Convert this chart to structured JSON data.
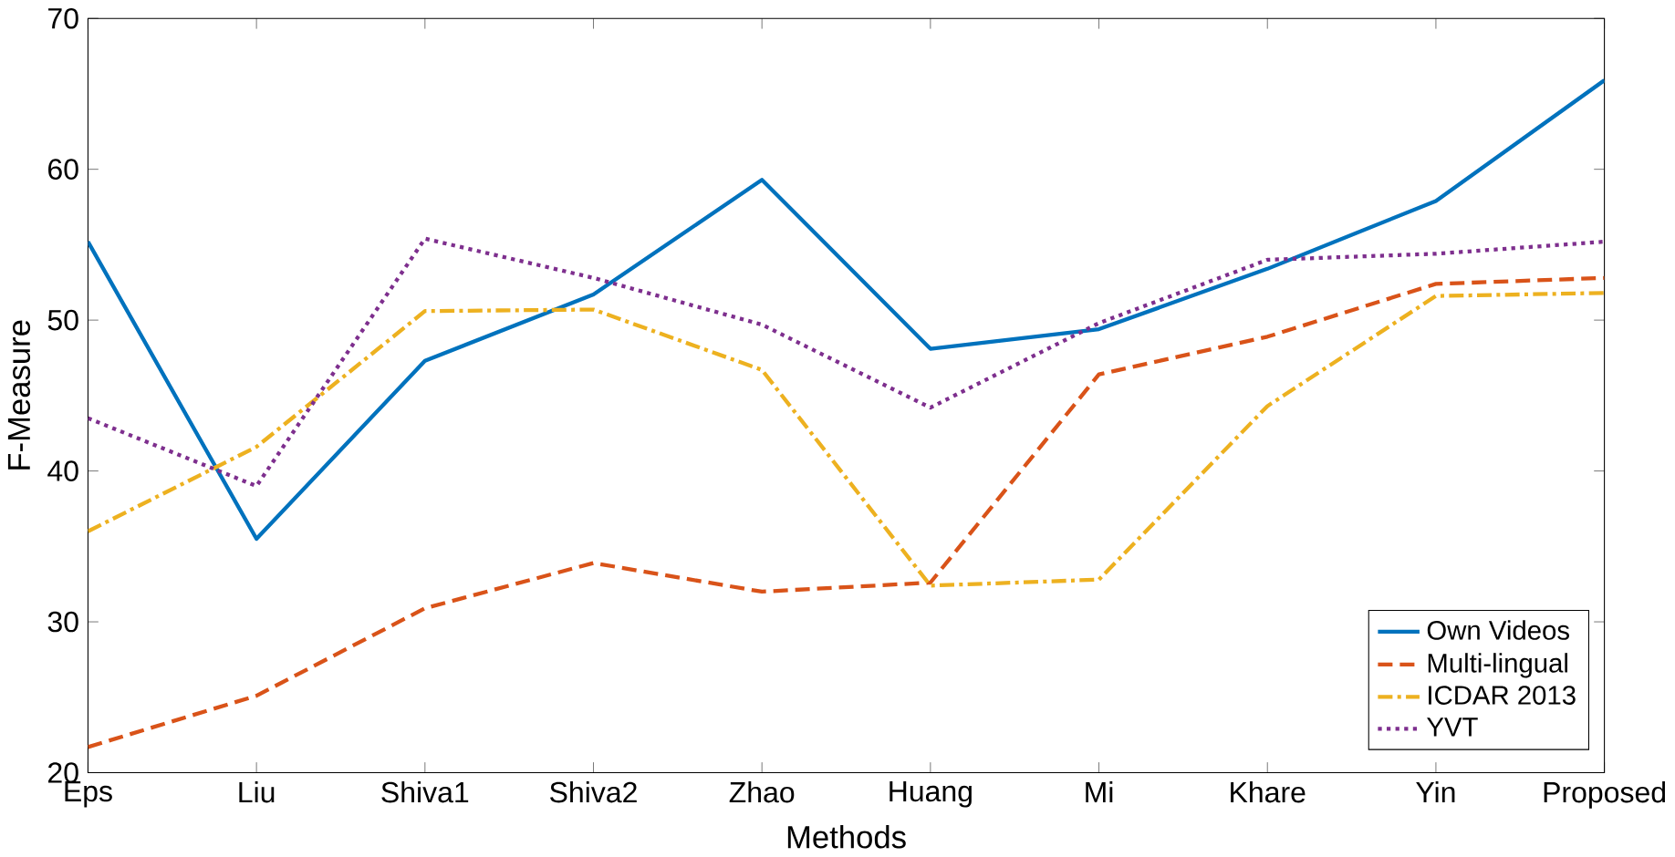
{
  "chart_data": {
    "type": "line",
    "xlabel": "Methods",
    "ylabel": "F-Measure",
    "categories": [
      "Eps",
      "Liu",
      "Shiva1",
      "Shiva2",
      "Zhao",
      "Huang",
      "Mi",
      "Khare",
      "Yin",
      "Proposed"
    ],
    "ylim": [
      20,
      70
    ],
    "yticks": [
      20,
      30,
      40,
      50,
      60,
      70
    ],
    "legend": "bottom right",
    "marker": "none",
    "series": [
      {
        "name": "Own Videos",
        "color": "#0072bd",
        "line_style": "solid",
        "values": [
          55.2,
          35.5,
          47.3,
          51.7,
          59.3,
          48.1,
          49.4,
          53.4,
          57.9,
          65.9
        ]
      },
      {
        "name": "Multi-lingual",
        "color": "#d95319",
        "line_style": "dashed",
        "values": [
          21.7,
          25.1,
          30.9,
          33.9,
          32.0,
          32.6,
          46.4,
          48.9,
          52.4,
          52.8
        ]
      },
      {
        "name": "ICDAR 2013",
        "color": "#edb120",
        "line_style": "dashdot",
        "values": [
          36.0,
          41.6,
          50.6,
          50.7,
          46.7,
          32.4,
          32.8,
          44.3,
          51.6,
          51.8
        ]
      },
      {
        "name": "YVT",
        "color": "#7e2f8e",
        "line_style": "dotted",
        "values": [
          43.5,
          39.0,
          55.4,
          52.8,
          49.7,
          44.2,
          49.8,
          54.0,
          54.4,
          55.2
        ]
      }
    ]
  }
}
